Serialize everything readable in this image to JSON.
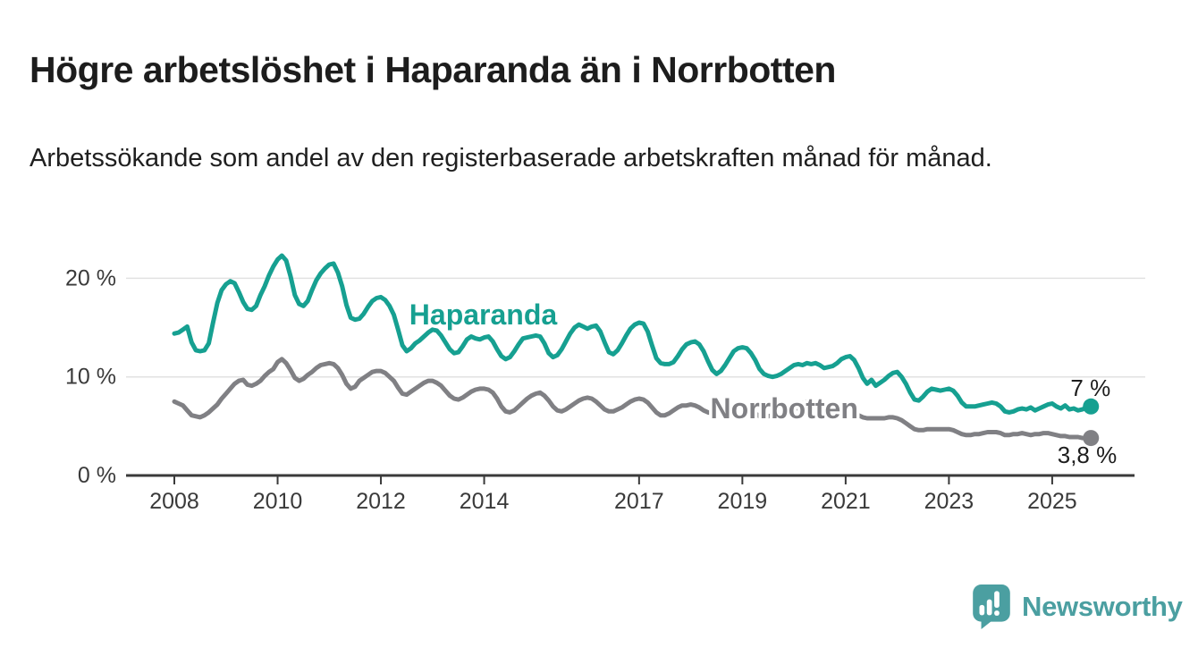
{
  "header": {
    "title": "Högre arbetslöshet i Haparanda än i Norrbotten",
    "subtitle": "Arbetssökande som andel av den registerbaserade arbetskraften månad för månad."
  },
  "footer": {
    "brand": "Newsworthy",
    "brand_color": "#4b9fa1"
  },
  "chart_data": {
    "type": "line",
    "x_unit": "month",
    "x_start": "2008-01",
    "x_end": "2025-10",
    "x_ticks": [
      "2008",
      "2010",
      "2012",
      "2014",
      "2017",
      "2019",
      "2021",
      "2023",
      "2025"
    ],
    "y_ticks": [
      {
        "v": 0,
        "label": "0 %"
      },
      {
        "v": 10,
        "label": "10 %"
      },
      {
        "v": 20,
        "label": "20 %"
      }
    ],
    "ylim": [
      0,
      23
    ],
    "grid": "horizontal",
    "legend_position": "inline-labels",
    "series": [
      {
        "name": "Haparanda",
        "color": "#16a091",
        "end_label": "7 %",
        "last_value": 7.0,
        "label_anchor": {
          "year": 2012.55,
          "value": 15.3
        },
        "values": [
          14.4,
          14.5,
          14.8,
          15.1,
          13.5,
          12.7,
          12.6,
          12.7,
          13.4,
          15.5,
          17.5,
          18.8,
          19.4,
          19.7,
          19.5,
          18.6,
          17.6,
          16.9,
          16.8,
          17.2,
          18.3,
          19.2,
          20.3,
          21.2,
          21.9,
          22.3,
          21.8,
          20.2,
          18.3,
          17.4,
          17.2,
          17.7,
          18.8,
          19.8,
          20.5,
          21.0,
          21.4,
          21.5,
          20.6,
          19.2,
          17.3,
          16.0,
          15.8,
          15.9,
          16.4,
          17.1,
          17.7,
          18.0,
          18.1,
          17.8,
          17.2,
          16.3,
          14.8,
          13.2,
          12.6,
          12.9,
          13.4,
          13.7,
          14.1,
          14.5,
          14.8,
          14.7,
          14.2,
          13.5,
          12.8,
          12.4,
          12.5,
          13.1,
          13.8,
          14.1,
          13.9,
          13.8,
          14.0,
          14.1,
          13.6,
          12.8,
          12.1,
          11.8,
          12.0,
          12.6,
          13.3,
          13.9,
          14.0,
          14.1,
          14.2,
          14.1,
          13.4,
          12.4,
          12.0,
          12.2,
          12.8,
          13.6,
          14.4,
          15.0,
          15.3,
          15.1,
          14.9,
          15.1,
          15.2,
          14.6,
          13.5,
          12.5,
          12.3,
          12.7,
          13.4,
          14.2,
          14.9,
          15.3,
          15.5,
          15.4,
          14.6,
          13.2,
          11.9,
          11.4,
          11.3,
          11.3,
          11.5,
          12.1,
          12.8,
          13.3,
          13.5,
          13.6,
          13.3,
          12.6,
          11.6,
          10.7,
          10.3,
          10.6,
          11.2,
          11.9,
          12.6,
          12.9,
          13.0,
          12.9,
          12.4,
          11.7,
          10.8,
          10.3,
          10.1,
          10.0,
          10.1,
          10.3,
          10.6,
          10.9,
          11.2,
          11.3,
          11.2,
          11.4,
          11.3,
          11.4,
          11.2,
          10.9,
          11.0,
          11.1,
          11.4,
          11.8,
          12.0,
          12.1,
          11.7,
          10.9,
          9.9,
          9.3,
          9.7,
          9.1,
          9.4,
          9.7,
          10.1,
          10.4,
          10.5,
          10.0,
          9.3,
          8.4,
          7.7,
          7.6,
          8.0,
          8.5,
          8.8,
          8.7,
          8.6,
          8.7,
          8.8,
          8.6,
          8.1,
          7.4,
          7.0,
          7.0,
          7.0,
          7.1,
          7.2,
          7.3,
          7.4,
          7.3,
          7.0,
          6.5,
          6.4,
          6.5,
          6.7,
          6.8,
          6.7,
          6.9,
          6.6,
          6.8,
          7.0,
          7.2,
          7.3,
          7.0,
          6.8,
          7.1,
          6.7,
          6.8,
          6.6,
          6.7,
          6.9,
          7.0
        ]
      },
      {
        "name": "Norrbotten",
        "color": "#808084",
        "end_label": "3,8 %",
        "last_value": 3.8,
        "label_anchor": {
          "year": 2018.38,
          "value": 5.8
        },
        "values": [
          7.5,
          7.3,
          7.1,
          6.6,
          6.1,
          6.0,
          5.9,
          6.1,
          6.4,
          6.8,
          7.2,
          7.8,
          8.3,
          8.8,
          9.3,
          9.6,
          9.7,
          9.2,
          9.1,
          9.3,
          9.6,
          10.1,
          10.5,
          10.8,
          11.5,
          11.8,
          11.4,
          10.7,
          9.9,
          9.6,
          9.8,
          10.2,
          10.5,
          10.9,
          11.2,
          11.3,
          11.4,
          11.3,
          10.9,
          10.2,
          9.3,
          8.8,
          9.0,
          9.6,
          9.9,
          10.2,
          10.5,
          10.6,
          10.6,
          10.4,
          10.0,
          9.6,
          8.9,
          8.3,
          8.2,
          8.5,
          8.8,
          9.1,
          9.4,
          9.6,
          9.6,
          9.4,
          9.1,
          8.6,
          8.1,
          7.8,
          7.7,
          7.9,
          8.2,
          8.5,
          8.7,
          8.8,
          8.8,
          8.7,
          8.4,
          7.8,
          7.0,
          6.5,
          6.4,
          6.6,
          7.0,
          7.4,
          7.8,
          8.1,
          8.3,
          8.4,
          8.1,
          7.6,
          7.0,
          6.6,
          6.5,
          6.7,
          7.0,
          7.3,
          7.6,
          7.8,
          7.9,
          7.8,
          7.5,
          7.1,
          6.7,
          6.5,
          6.5,
          6.7,
          6.9,
          7.2,
          7.5,
          7.7,
          7.8,
          7.7,
          7.4,
          6.9,
          6.4,
          6.1,
          6.1,
          6.3,
          6.6,
          6.9,
          7.1,
          7.1,
          7.2,
          7.1,
          6.9,
          6.6,
          6.4,
          6.3,
          6.2,
          6.4,
          6.6,
          6.8,
          6.9,
          7.0,
          7.0,
          6.9,
          6.6,
          6.3,
          6.0,
          5.9,
          6.0,
          6.1,
          6.2,
          6.3,
          6.4,
          6.5,
          6.7,
          6.9,
          7.3,
          7.5,
          7.4,
          7.3,
          7.2,
          7.1,
          7.0,
          6.9,
          6.9,
          6.9,
          6.8,
          6.7,
          6.4,
          6.1,
          5.9,
          5.8,
          5.8,
          5.8,
          5.8,
          5.8,
          5.9,
          5.9,
          5.8,
          5.6,
          5.3,
          5.0,
          4.7,
          4.6,
          4.6,
          4.7,
          4.7,
          4.7,
          4.7,
          4.7,
          4.7,
          4.6,
          4.4,
          4.2,
          4.1,
          4.1,
          4.2,
          4.2,
          4.3,
          4.4,
          4.4,
          4.4,
          4.3,
          4.1,
          4.1,
          4.2,
          4.2,
          4.3,
          4.2,
          4.1,
          4.2,
          4.2,
          4.3,
          4.3,
          4.2,
          4.1,
          4.0,
          4.0,
          3.9,
          3.9,
          3.9,
          3.8,
          3.8,
          3.8
        ]
      }
    ]
  }
}
